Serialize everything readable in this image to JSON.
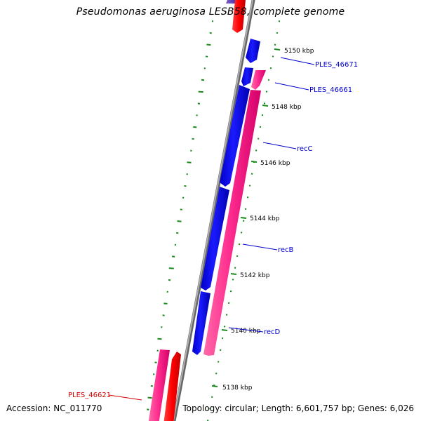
{
  "title": "Pseudomonas aeruginosa LESB58, complete genome",
  "accession_text": "Accession: NC_011770",
  "topology_text": "Topology: circular; Length: 6,601,757 bp; Genes: 6,026",
  "colors": {
    "backbone": "#7f7f7f",
    "gc_skew_dots": "#1a8a1a",
    "forward_cds": "#e8007a",
    "reverse_cds": "#0000ff",
    "rna_gene": "#ff0000",
    "label_reverse": "#0000cc",
    "label_forward": "#d40000"
  },
  "ticks": [
    {
      "label": "5150 kbp"
    },
    {
      "label": "5148 kbp"
    },
    {
      "label": "5146 kbp"
    },
    {
      "label": "5144 kbp"
    },
    {
      "label": "5142 kbp"
    },
    {
      "label": "5140 kbp"
    },
    {
      "label": "5138 kbp"
    }
  ],
  "genes": [
    {
      "label": "PLES_46671",
      "strand": "reverse"
    },
    {
      "label": "PLES_46661",
      "strand": "reverse"
    },
    {
      "label": "recC",
      "strand": "reverse"
    },
    {
      "label": "recB",
      "strand": "reverse"
    },
    {
      "label": "recD",
      "strand": "reverse"
    },
    {
      "label": "PLES_46621",
      "strand": "forward"
    }
  ]
}
